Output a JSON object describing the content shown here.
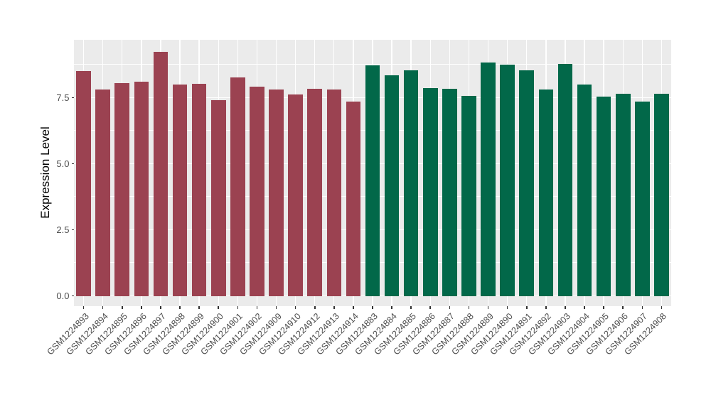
{
  "chart_data": {
    "type": "bar",
    "title": "",
    "xlabel": "",
    "ylabel": "Expression Level",
    "ylim": [
      0,
      9.7
    ],
    "yticks": {
      "values": [
        0,
        2.5,
        5,
        7.5
      ],
      "labels": [
        "0.0",
        "2.5",
        "5.0",
        "7.5"
      ]
    },
    "grid": true,
    "grid_minor": true,
    "legend_position": "none",
    "categories": [
      "GSM1224893",
      "GSM1224894",
      "GSM1224895",
      "GSM1224896",
      "GSM1224897",
      "GSM1224898",
      "GSM1224899",
      "GSM1224900",
      "GSM1224901",
      "GSM1224902",
      "GSM1224909",
      "GSM1224910",
      "GSM1224912",
      "GSM1224913",
      "GSM1224914",
      "GSM1224883",
      "GSM1224884",
      "GSM1224885",
      "GSM1224886",
      "GSM1224887",
      "GSM1224888",
      "GSM1224889",
      "GSM1224890",
      "GSM1224891",
      "GSM1224892",
      "GSM1224903",
      "GSM1224904",
      "GSM1224905",
      "GSM1224906",
      "GSM1224907",
      "GSM1224908"
    ],
    "values": [
      8.5,
      7.82,
      8.05,
      8.11,
      9.23,
      7.99,
      8.03,
      7.4,
      8.28,
      7.91,
      7.8,
      7.61,
      7.83,
      7.8,
      7.36,
      8.72,
      8.34,
      8.54,
      7.87,
      7.85,
      7.56,
      8.83,
      8.74,
      8.55,
      7.8,
      8.78,
      8.0,
      7.55,
      7.66,
      7.35,
      7.65
    ],
    "groups": [
      {
        "name": "group-1",
        "color": "#9B4251",
        "start": 0,
        "count": 15
      },
      {
        "name": "group-2",
        "color": "#026849",
        "start": 15,
        "count": 16
      }
    ]
  },
  "style": {
    "figure_background": "#FFFFFF",
    "panel_background": "#EBEBEB",
    "grid_color": "#FFFFFF",
    "axis_text_color": "#4D4D4D",
    "axis_title_color": "#000000",
    "tick_color": "#333333"
  }
}
